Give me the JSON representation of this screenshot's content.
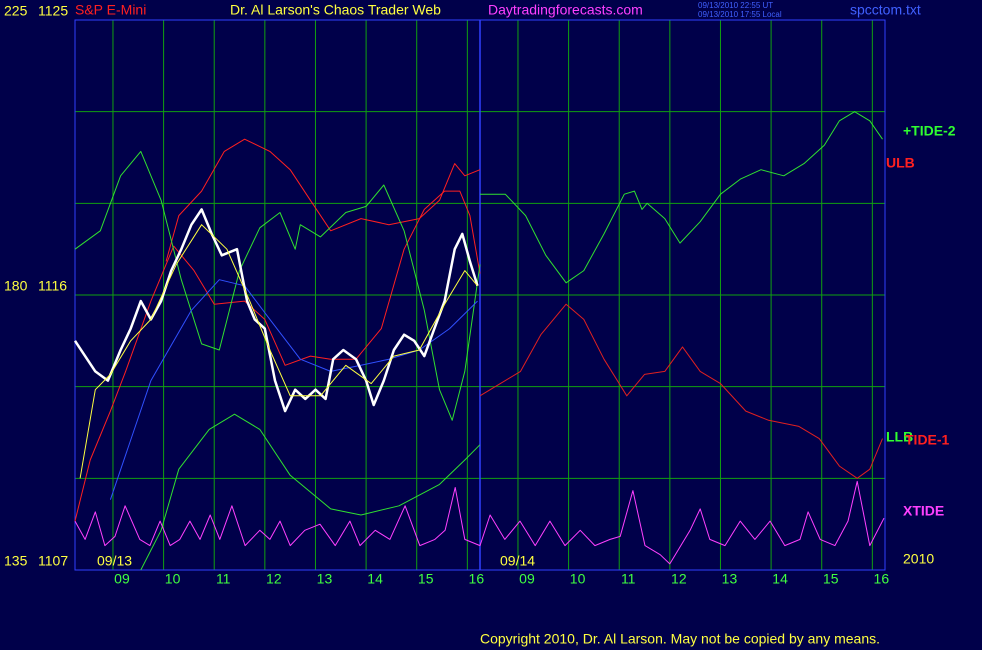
{
  "chart_data": {
    "type": "line",
    "subtitle": "S&P E-Mini",
    "title": "Dr. Al Larson's Chaos Trader Web",
    "source": "Daytradingforecasts.com",
    "timestamps": [
      "09/13/2010 22:55 UT",
      "09/13/2010 17:55 Local"
    ],
    "file": "spcctom.txt",
    "copyright": "Copyright 2010, Dr. Al Larson. May not be copied by any means.",
    "annotations": [
      "09/13",
      "09/14",
      "2010"
    ],
    "right_labels": [
      {
        "text": "+TIDE-2",
        "color": "#30ff30"
      },
      {
        "text": "ULB",
        "color": "#ff2020"
      },
      {
        "text": "LLB",
        "color": "#30ff30"
      },
      {
        "text": "TIDE-1",
        "color": "#ff2020"
      },
      {
        "text": "XTIDE",
        "color": "#ff40ff"
      }
    ],
    "xlim": [
      0,
      16
    ],
    "xticks": [
      {
        "value": 0.75,
        "label": "09"
      },
      {
        "value": 1.75,
        "label": "10"
      },
      {
        "value": 2.75,
        "label": "11"
      },
      {
        "value": 3.75,
        "label": "12"
      },
      {
        "value": 4.75,
        "label": "13"
      },
      {
        "value": 5.75,
        "label": "14"
      },
      {
        "value": 6.75,
        "label": "15"
      },
      {
        "value": 7.75,
        "label": "16"
      },
      {
        "value": 8.75,
        "label": "09"
      },
      {
        "value": 9.75,
        "label": "10"
      },
      {
        "value": 10.75,
        "label": "11"
      },
      {
        "value": 11.75,
        "label": "12"
      },
      {
        "value": 12.75,
        "label": "13"
      },
      {
        "value": 13.75,
        "label": "14"
      },
      {
        "value": 14.75,
        "label": "15"
      },
      {
        "value": 15.75,
        "label": "16"
      }
    ],
    "day_divider": 8,
    "ylim": [
      1107,
      1125
    ],
    "yticks": [
      1107,
      1116,
      1125
    ],
    "ygrid": [
      1110,
      1113,
      1119,
      1122
    ],
    "y2lim": [
      135,
      225
    ],
    "y2ticks": [
      135,
      180,
      225
    ],
    "grid": true,
    "series": [
      {
        "color": "#ff2020",
        "x": [
          1.8,
          2.05,
          2.5,
          2.95,
          3.35,
          3.85,
          4.25,
          4.65,
          5.05,
          5.65,
          6.2,
          6.8,
          7.2,
          7.5,
          7.7,
          8.0
        ],
        "values": [
          1117.1,
          1118.6,
          1119.4,
          1120.7,
          1121.1,
          1120.7,
          1120.1,
          1119.1,
          1118.1,
          1118.5,
          1118.3,
          1118.5,
          1119.1,
          1120.3,
          1119.9,
          1120.1
        ]
      },
      {
        "color": "#ff2020",
        "x": [
          0,
          0.3,
          0.7,
          1.0,
          1.5,
          1.95,
          2.35,
          2.75,
          3.35,
          3.75,
          4.15,
          4.65,
          5.05,
          5.55,
          6.05,
          6.5,
          6.9,
          7.3,
          7.6,
          7.8,
          8.0
        ],
        "values": [
          1108.6,
          1110.6,
          1112.2,
          1113.5,
          1115.8,
          1117.6,
          1116.8,
          1115.7,
          1115.8,
          1115.2,
          1113.7,
          1114.0,
          1113.9,
          1113.9,
          1114.9,
          1117.5,
          1118.8,
          1119.4,
          1119.4,
          1118.6,
          1116.7
        ]
      },
      {
        "color": "#30e030",
        "x": [
          0,
          0.5,
          0.9,
          1.3,
          1.7,
          2.1,
          2.5,
          2.85,
          3.25,
          3.65,
          4.05,
          4.35,
          4.45,
          4.85,
          5.35,
          5.75,
          6.1,
          6.5,
          6.9,
          7.2,
          7.45,
          7.7,
          8.0
        ],
        "values": [
          1117.5,
          1118.1,
          1119.9,
          1120.7,
          1119.1,
          1116.5,
          1114.4,
          1114.2,
          1116.8,
          1118.2,
          1118.7,
          1117.5,
          1118.3,
          1117.9,
          1118.7,
          1118.9,
          1119.6,
          1118.1,
          1115.5,
          1112.9,
          1111.9,
          1113.5,
          1117.0
        ]
      },
      {
        "color": "#30e030",
        "x": [
          1.3,
          1.7,
          2.05,
          2.65,
          3.15,
          3.65,
          4.25,
          5.05,
          5.65,
          6.4,
          7.2,
          7.7,
          8.0
        ],
        "values": [
          1107.0,
          1108.3,
          1110.3,
          1111.6,
          1112.1,
          1111.6,
          1110.1,
          1109.0,
          1108.8,
          1109.1,
          1109.8,
          1110.6,
          1111.1
        ]
      },
      {
        "color": "#3050ff",
        "x": [
          0.7,
          1.5,
          2.3,
          2.85,
          3.35,
          3.85,
          4.45,
          5.05,
          5.65,
          6.2,
          6.8,
          7.4,
          7.95
        ],
        "values": [
          1109.3,
          1113.2,
          1115.5,
          1116.5,
          1116.3,
          1115.2,
          1113.9,
          1113.5,
          1113.7,
          1113.9,
          1114.2,
          1114.9,
          1115.8
        ]
      },
      {
        "color": "#ffffff",
        "x": [
          0,
          0.2,
          0.4,
          0.65,
          0.9,
          1.1,
          1.3,
          1.5,
          1.7,
          1.9,
          2.1,
          2.3,
          2.5,
          2.7,
          2.9,
          3.2,
          3.4,
          3.55,
          3.75,
          3.95,
          4.15,
          4.35,
          4.55,
          4.75,
          4.95,
          5.1,
          5.3,
          5.55,
          5.75,
          5.9,
          6.1,
          6.3,
          6.5,
          6.7,
          6.9,
          7.1,
          7.3,
          7.5,
          7.65,
          7.8,
          7.95
        ],
        "values": [
          1114.5,
          1114.0,
          1113.5,
          1113.2,
          1114.2,
          1114.9,
          1115.8,
          1115.2,
          1115.8,
          1116.8,
          1117.5,
          1118.3,
          1118.8,
          1118.0,
          1117.3,
          1117.5,
          1115.8,
          1115.2,
          1114.9,
          1113.2,
          1112.2,
          1112.9,
          1112.6,
          1112.9,
          1112.6,
          1113.9,
          1114.2,
          1113.9,
          1113.2,
          1112.4,
          1113.2,
          1114.2,
          1114.7,
          1114.5,
          1114.0,
          1114.9,
          1115.8,
          1117.5,
          1118.0,
          1117.1,
          1116.3
        ]
      },
      {
        "color": "#ffff40",
        "x": [
          0.1,
          0.4,
          0.7,
          1.1,
          1.5,
          2.0,
          2.5,
          3.0,
          3.45,
          3.85,
          4.25,
          4.85,
          5.35,
          5.85,
          6.3,
          6.8,
          7.3,
          7.7,
          7.95
        ],
        "values": [
          1110.0,
          1112.9,
          1113.4,
          1114.5,
          1115.2,
          1117.0,
          1118.3,
          1117.5,
          1115.8,
          1114.2,
          1112.7,
          1112.7,
          1113.7,
          1113.1,
          1114.0,
          1114.2,
          1115.7,
          1116.8,
          1116.3
        ]
      },
      {
        "color": "#30e030",
        "x": [
          8.0,
          8.5,
          8.9,
          9.3,
          9.7,
          10.05,
          10.45,
          10.85,
          11.05,
          11.2,
          11.3,
          11.65,
          11.95,
          12.35,
          12.75,
          13.15,
          13.55,
          14.0,
          14.4,
          14.8,
          15.1,
          15.4,
          15.7,
          15.95
        ],
        "values": [
          1119.3,
          1119.3,
          1118.6,
          1117.3,
          1116.4,
          1116.8,
          1118.0,
          1119.3,
          1119.4,
          1118.8,
          1119.0,
          1118.5,
          1117.7,
          1118.4,
          1119.3,
          1119.8,
          1120.1,
          1119.9,
          1120.3,
          1120.9,
          1121.7,
          1122.0,
          1121.7,
          1121.1
        ]
      },
      {
        "color": "#e02020",
        "x": [
          8.0,
          8.4,
          8.8,
          9.2,
          9.7,
          10.05,
          10.45,
          10.9,
          11.25,
          11.65,
          12.0,
          12.35,
          12.75,
          13.25,
          13.7,
          14.3,
          14.7,
          15.1,
          15.45,
          15.7,
          15.95
        ],
        "values": [
          1112.7,
          1113.1,
          1113.5,
          1114.7,
          1115.7,
          1115.2,
          1113.9,
          1112.7,
          1113.4,
          1113.5,
          1114.3,
          1113.5,
          1113.1,
          1112.2,
          1111.9,
          1111.7,
          1111.3,
          1110.4,
          1110.0,
          1110.3,
          1111.3
        ]
      },
      {
        "color": "#ff40ff",
        "x": [
          0,
          0.2,
          0.4,
          0.59,
          0.79,
          0.99,
          1.28,
          1.48,
          1.68,
          1.88,
          2.07,
          2.27,
          2.47,
          2.67,
          2.86,
          3.1,
          3.36,
          3.65,
          3.85,
          4.05,
          4.25,
          4.54,
          4.84,
          5.14,
          5.43,
          5.63,
          5.93,
          6.22,
          6.52,
          6.81,
          7.11,
          7.31,
          7.51,
          7.7,
          8.0,
          8.2,
          8.49,
          8.79,
          9.09,
          9.38,
          9.68,
          9.98,
          10.27,
          10.57,
          10.77,
          11.02,
          11.26,
          11.56,
          11.75,
          12.15,
          12.35,
          12.54,
          12.84,
          13.14,
          13.43,
          13.73,
          14.02,
          14.32,
          14.48,
          14.72,
          15.01,
          15.27,
          15.45,
          15.7,
          15.98
        ],
        "values": [
          1108.6,
          1108.0,
          1108.9,
          1107.8,
          1108.1,
          1109.1,
          1108.0,
          1107.8,
          1108.6,
          1107.8,
          1108.0,
          1108.6,
          1108.0,
          1108.8,
          1108.0,
          1109.1,
          1107.8,
          1108.3,
          1108.0,
          1108.6,
          1107.8,
          1108.3,
          1108.5,
          1107.8,
          1108.6,
          1107.8,
          1108.3,
          1108.0,
          1109.1,
          1107.8,
          1108.0,
          1108.3,
          1109.7,
          1108.0,
          1107.8,
          1108.8,
          1108.0,
          1108.6,
          1107.8,
          1108.6,
          1107.8,
          1108.3,
          1107.8,
          1108.0,
          1108.1,
          1109.6,
          1107.8,
          1107.5,
          1107.2,
          1108.3,
          1109.0,
          1108.0,
          1107.8,
          1108.6,
          1108.0,
          1108.6,
          1107.8,
          1108.0,
          1108.9,
          1108.0,
          1107.8,
          1108.6,
          1109.9,
          1107.8,
          1108.7
        ]
      }
    ]
  }
}
